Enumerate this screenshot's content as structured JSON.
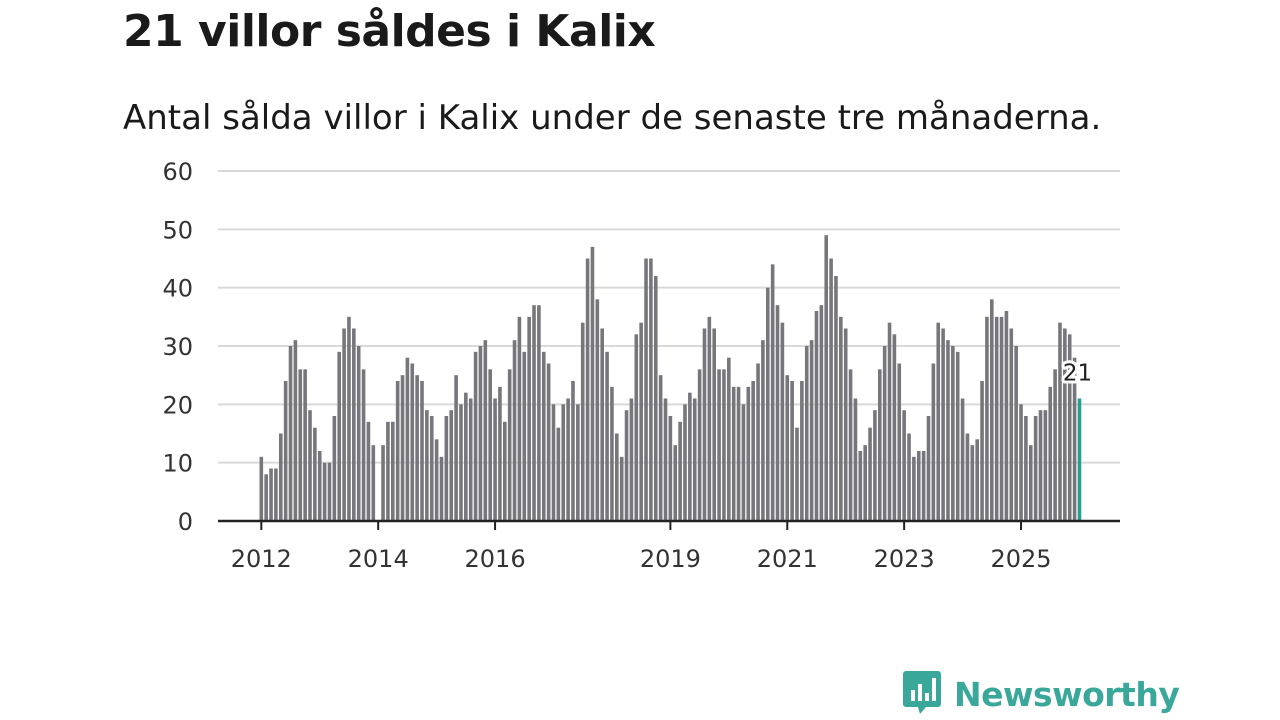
{
  "title": "21 villor såldes i Kalix",
  "subtitle": "Antal sålda villor i Kalix under de senaste tre månaderna.",
  "brand": {
    "name": "Newsworthy",
    "icon": "newsworthy-logo-icon",
    "color": "#39a89a"
  },
  "colors": {
    "bar": "#76767c",
    "highlight": "#2a9d92",
    "grid": "#d9d9d9",
    "axis": "#222222"
  },
  "chart_data": {
    "type": "bar",
    "title": "21 villor såldes i Kalix",
    "xlabel": "",
    "ylabel": "",
    "ylim": [
      0,
      60
    ],
    "yticks": [
      0,
      10,
      20,
      30,
      40,
      50,
      60
    ],
    "grid": true,
    "xticks": [
      {
        "label": "2012",
        "index": 0
      },
      {
        "label": "2014",
        "index": 24
      },
      {
        "label": "2016",
        "index": 48
      },
      {
        "label": "2019",
        "index": 84
      },
      {
        "label": "2021",
        "index": 108
      },
      {
        "label": "2023",
        "index": 132
      },
      {
        "label": "2025",
        "index": 156
      }
    ],
    "series": [
      {
        "name": "Antal sålda villor (rullande tre månader)",
        "start": "2012-01",
        "values": [
          11,
          8,
          9,
          9,
          15,
          24,
          30,
          31,
          26,
          26,
          19,
          16,
          12,
          10,
          10,
          18,
          29,
          33,
          35,
          33,
          30,
          26,
          17,
          13,
          0,
          13,
          17,
          17,
          24,
          25,
          28,
          27,
          25,
          24,
          19,
          18,
          14,
          11,
          18,
          19,
          25,
          20,
          22,
          21,
          29,
          30,
          31,
          26,
          21,
          23,
          17,
          26,
          31,
          35,
          29,
          35,
          37,
          37,
          29,
          27,
          20,
          16,
          20,
          21,
          24,
          20,
          34,
          45,
          47,
          38,
          33,
          29,
          23,
          15,
          11,
          19,
          21,
          32,
          34,
          45,
          45,
          42,
          25,
          21,
          18,
          13,
          17,
          20,
          22,
          21,
          26,
          33,
          35,
          33,
          26,
          26,
          28,
          23,
          23,
          20,
          23,
          24,
          27,
          31,
          40,
          44,
          37,
          34,
          25,
          24,
          16,
          24,
          30,
          31,
          36,
          37,
          49,
          45,
          42,
          35,
          33,
          26,
          21,
          12,
          13,
          16,
          19,
          26,
          30,
          34,
          32,
          27,
          19,
          15,
          11,
          12,
          12,
          18,
          27,
          34,
          33,
          31,
          30,
          29,
          21,
          15,
          13,
          14,
          24,
          35,
          38,
          35,
          35,
          36,
          33,
          30,
          20,
          18,
          13,
          18,
          19,
          19,
          23,
          26,
          34,
          33,
          32,
          28,
          21
        ]
      }
    ],
    "annotation": {
      "label": "21",
      "value": 21
    }
  }
}
